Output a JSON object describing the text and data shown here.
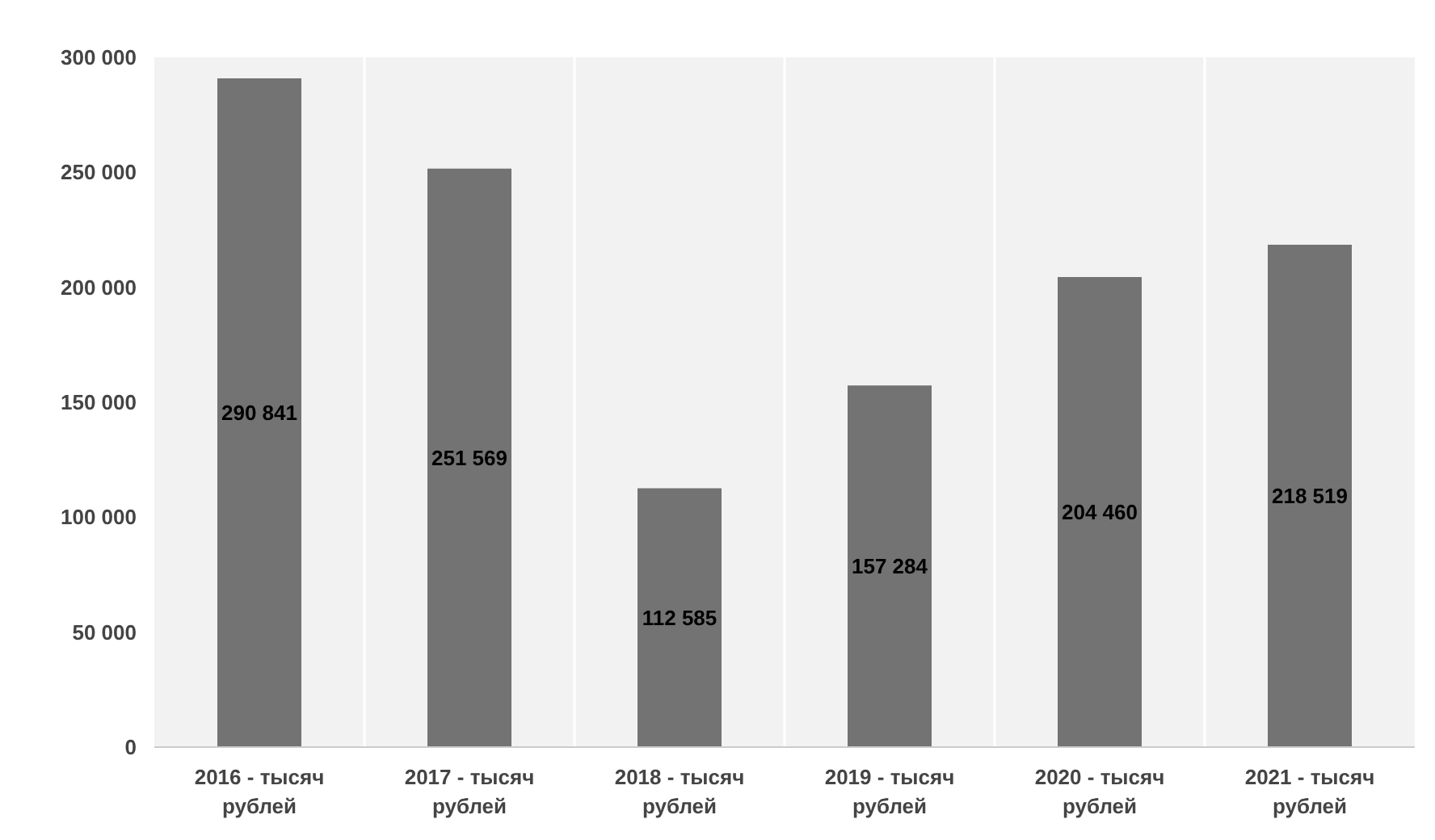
{
  "chart_data": {
    "type": "bar",
    "categories": [
      "2016 - тысяч\nрублей",
      "2017 - тысяч\nрублей",
      "2018 - тысяч\nрублей",
      "2019 - тысяч\nрублей",
      "2020 - тысяч\nрублей",
      "2021 - тысяч\nрублей"
    ],
    "values": [
      290841,
      251569,
      112585,
      157284,
      204460,
      218519
    ],
    "value_labels": [
      "290 841",
      "251 569",
      "112 585",
      "157 284",
      "204 460",
      "218 519"
    ],
    "color": "#737373",
    "ylim": [
      0,
      300000
    ],
    "yticks": [
      {
        "value": 0,
        "label": "0"
      },
      {
        "value": 50000,
        "label": "50 000"
      },
      {
        "value": 100000,
        "label": "100 000"
      },
      {
        "value": 150000,
        "label": "150 000"
      },
      {
        "value": 200000,
        "label": "200 000"
      },
      {
        "value": 250000,
        "label": "250 000"
      },
      {
        "value": 300000,
        "label": "300 000"
      }
    ],
    "grid": "x"
  }
}
